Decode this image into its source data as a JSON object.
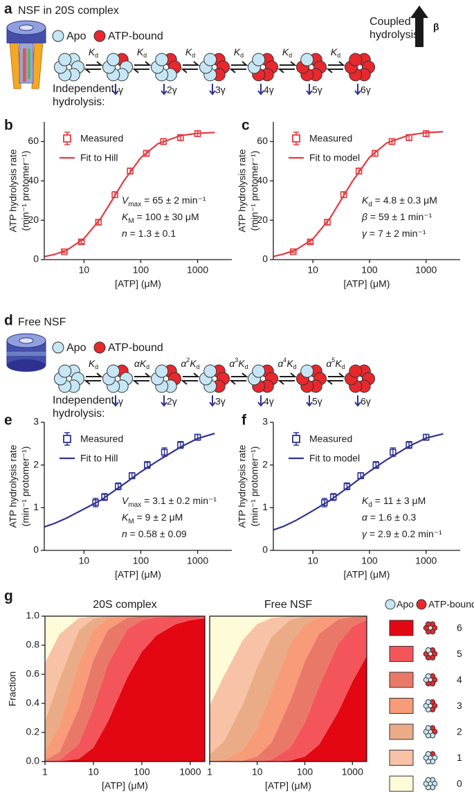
{
  "panel_a": {
    "letter": "a",
    "title": "NSF in 20S complex",
    "title_color": "#e30613",
    "apo": "Apo",
    "bound": "ATP-bound",
    "steps": [
      {
        "k": "K",
        "sub": "d"
      },
      {
        "k": "K",
        "sub": "d"
      },
      {
        "k": "K",
        "sub": "d"
      },
      {
        "k": "K",
        "sub": "d"
      },
      {
        "k": "K",
        "sub": "d"
      },
      {
        "k": "K",
        "sub": "d"
      }
    ],
    "hydrolysis": [
      "γ",
      "2γ",
      "3γ",
      "4γ",
      "5γ",
      "6γ"
    ],
    "independent": [
      "Independent",
      "hydrolysis:"
    ],
    "coupled": [
      "Coupled",
      "hydrolysis:"
    ],
    "beta": "β"
  },
  "panel_d": {
    "letter": "d",
    "title": "Free NSF",
    "title_color": "#2e3192",
    "apo": "Apo",
    "bound": "ATP-bound",
    "steps": [
      {
        "k": "K",
        "sub": "d"
      },
      {
        "coef": "α",
        "k": "K",
        "sub": "d"
      },
      {
        "coef": "α",
        "exp": "2",
        "k": "K",
        "sub": "d"
      },
      {
        "coef": "α",
        "exp": "3",
        "k": "K",
        "sub": "d"
      },
      {
        "coef": "α",
        "exp": "4",
        "k": "K",
        "sub": "d"
      },
      {
        "coef": "α",
        "exp": "5",
        "k": "K",
        "sub": "d"
      }
    ],
    "hydrolysis": [
      "γ",
      "2γ",
      "3γ",
      "4γ",
      "5γ",
      "6γ"
    ],
    "independent": [
      "Independent",
      "hydrolysis:"
    ]
  },
  "chart_data": [
    {
      "type": "scatter",
      "letter": "b",
      "xlabel": "[ATP] (μM)",
      "ylabel": [
        "ATP hydrolysis rate",
        "(min⁻¹ protomer⁻¹)"
      ],
      "xscale": "log",
      "xlim": [
        2,
        4000
      ],
      "xticks": [
        10,
        100,
        1000
      ],
      "ylim": [
        0,
        70
      ],
      "yticks": [
        0,
        20,
        40,
        60
      ],
      "series": [
        {
          "name": "Measured",
          "color": "#e53a3f",
          "style": "marker",
          "x": [
            4.5,
            9,
            18,
            35,
            65,
            125,
            250,
            500,
            1000
          ],
          "values": [
            4,
            9,
            19,
            33,
            45,
            54,
            60,
            62,
            64
          ],
          "errors": [
            0.5,
            0.8,
            1.2,
            1.5,
            1.5,
            1.5,
            1.5,
            1.5,
            1.5
          ]
        },
        {
          "name": "Fit to Hill",
          "color": "#e53a3f",
          "style": "line",
          "x": [
            2,
            3,
            5,
            10,
            20,
            35,
            50,
            100,
            200,
            500,
            1000,
            2000
          ],
          "values": [
            1.5,
            2.6,
            4.8,
            10.7,
            21.2,
            32.5,
            39.9,
            51.8,
            58.9,
            63.0,
            64.2,
            64.6
          ]
        }
      ],
      "stats": [
        {
          "sym": "V",
          "sub": "max",
          "text": " = 65 ± 2 min⁻¹"
        },
        {
          "sym": "K",
          "sub": "M",
          "text": " = 100 ± 30 μM"
        },
        {
          "sym": "n",
          "text": " = 1.3 ± 0.1"
        }
      ]
    },
    {
      "type": "scatter",
      "letter": "c",
      "xlabel": "[ATP] (μM)",
      "ylabel": [
        "ATP hydrolysis rate",
        "(min⁻¹ protomer⁻¹)"
      ],
      "xscale": "log",
      "xlim": [
        2,
        4000
      ],
      "xticks": [
        10,
        100,
        1000
      ],
      "ylim": [
        0,
        70
      ],
      "yticks": [
        0,
        20,
        40,
        60
      ],
      "series": [
        {
          "name": "Measured",
          "color": "#e53a3f",
          "style": "marker",
          "x": [
            4.5,
            9,
            18,
            35,
            65,
            125,
            250,
            500,
            1000
          ],
          "values": [
            4,
            9,
            19,
            33,
            45,
            54,
            60,
            62,
            64
          ],
          "errors": [
            0.5,
            0.8,
            1.2,
            1.5,
            1.5,
            1.5,
            1.5,
            1.5,
            1.5
          ]
        },
        {
          "name": "Fit to model",
          "color": "#e53a3f",
          "style": "line",
          "x": [
            2,
            3,
            5,
            10,
            20,
            35,
            50,
            100,
            200,
            500,
            1000,
            2000
          ],
          "values": [
            1.6,
            2.8,
            4.9,
            10.5,
            21,
            32.5,
            39.8,
            52,
            59.2,
            63.3,
            64.5,
            65
          ]
        }
      ],
      "stats": [
        {
          "sym": "K",
          "sub": "d",
          "text": " = 4.8 ± 0.3 μM"
        },
        {
          "sym": "β",
          "text": " = 59 ± 1 min⁻¹"
        },
        {
          "sym": "γ",
          "text": " = 7 ± 2 min⁻¹"
        }
      ]
    },
    {
      "type": "scatter",
      "letter": "e",
      "xlabel": "[ATP] (μM)",
      "ylabel": [
        "ATP hydrolysis rate",
        "(min⁻¹ protomer⁻¹)"
      ],
      "xscale": "log",
      "xlim": [
        2,
        4000
      ],
      "xticks": [
        10,
        100,
        1000
      ],
      "ylim": [
        0,
        3
      ],
      "yticks": [
        0,
        1,
        2,
        3
      ],
      "series": [
        {
          "name": "Measured",
          "color": "#2e3192",
          "style": "marker",
          "x": [
            16,
            23,
            40,
            70,
            130,
            260,
            500,
            1000
          ],
          "values": [
            1.12,
            1.25,
            1.5,
            1.75,
            2.0,
            2.3,
            2.47,
            2.65
          ],
          "errors": [
            0.1,
            0.08,
            0.08,
            0.07,
            0.08,
            0.1,
            0.08,
            0.07
          ]
        },
        {
          "name": "Fit to Hill",
          "color": "#2e3192",
          "style": "line",
          "x": [
            2,
            3,
            5,
            10,
            20,
            50,
            100,
            200,
            500,
            1000,
            2000
          ],
          "values": [
            0.55,
            0.63,
            0.76,
            0.97,
            1.18,
            1.55,
            1.84,
            2.1,
            2.42,
            2.62,
            2.74
          ]
        }
      ],
      "stats": [
        {
          "sym": "V",
          "sub": "max",
          "text": " = 3.1 ± 0.2 min⁻¹"
        },
        {
          "sym": "K",
          "sub": "M",
          "text": " = 9 ± 2 μM"
        },
        {
          "sym": "n",
          "text": " = 0.58 ± 0.09"
        }
      ]
    },
    {
      "type": "scatter",
      "letter": "f",
      "xlabel": "[ATP] (μM)",
      "ylabel": [
        "ATP hydrolysis rate",
        "(min⁻¹ protomer⁻¹)"
      ],
      "xscale": "log",
      "xlim": [
        2,
        4000
      ],
      "xticks": [
        10,
        100,
        1000
      ],
      "ylim": [
        0,
        3
      ],
      "yticks": [
        0,
        1,
        2,
        3
      ],
      "series": [
        {
          "name": "Measured",
          "color": "#2e3192",
          "style": "marker",
          "x": [
            16,
            23,
            40,
            70,
            130,
            260,
            500,
            1000
          ],
          "values": [
            1.12,
            1.25,
            1.5,
            1.75,
            2.0,
            2.3,
            2.47,
            2.65
          ],
          "errors": [
            0.1,
            0.08,
            0.08,
            0.07,
            0.08,
            0.1,
            0.08,
            0.07
          ]
        },
        {
          "name": "Fit to model",
          "color": "#2e3192",
          "style": "line",
          "x": [
            2,
            3,
            5,
            10,
            20,
            50,
            100,
            200,
            500,
            1000,
            2000
          ],
          "values": [
            0.48,
            0.56,
            0.7,
            0.93,
            1.17,
            1.55,
            1.85,
            2.12,
            2.44,
            2.63,
            2.73
          ]
        }
      ],
      "stats": [
        {
          "sym": "K",
          "sub": "d",
          "text": " = 11 ± 3 μM"
        },
        {
          "sym": "α",
          "text": " = 1.6 ± 0.3"
        },
        {
          "sym": "γ",
          "text": " = 2.9 ± 0.2 min⁻¹"
        }
      ]
    },
    {
      "type": "area",
      "letter": "g",
      "title": "20S complex",
      "title_color": "#e30613",
      "xlabel": "[ATP] (μM)",
      "ylabel": "Fraction",
      "legend_header": [
        "Apo",
        "ATP-bound"
      ],
      "frame": true,
      "xscale": "log",
      "xlim": [
        1,
        2000
      ],
      "xticks": [
        1,
        10,
        100,
        1000
      ],
      "ylim": [
        0,
        1
      ],
      "yticks": [
        {
          "value": 0,
          "label": "0.0"
        },
        0.2,
        0.4,
        0.6,
        0.8,
        {
          "value": 1,
          "label": "1.0"
        }
      ],
      "x": [
        1,
        2,
        5,
        10,
        20,
        50,
        100,
        200,
        500,
        1000,
        2000
      ],
      "series": [
        {
          "name": "6",
          "color": "#e30613",
          "values": [
            0,
            0.001,
            0.018,
            0.095,
            0.275,
            0.577,
            0.755,
            0.867,
            0.944,
            0.972,
            0.986
          ]
        },
        {
          "name": "5",
          "color": "#f4555a",
          "values": [
            0.001,
            0.009,
            0.102,
            0.274,
            0.395,
            0.332,
            0.217,
            0.125,
            0.054,
            0.028,
            0.014
          ]
        },
        {
          "name": "4",
          "color": "#ea7868",
          "values": [
            0.009,
            0.056,
            0.244,
            0.329,
            0.237,
            0.08,
            0.026,
            0.007,
            0.001,
            0,
            0
          ]
        },
        {
          "name": "3",
          "color": "#f89b78",
          "values": [
            0.058,
            0.179,
            0.312,
            0.21,
            0.076,
            0.01,
            0.002,
            0,
            0,
            0,
            0
          ]
        },
        {
          "name": "2",
          "color": "#eaac86",
          "values": [
            0.209,
            0.322,
            0.225,
            0.076,
            0.014,
            0.001,
            0,
            0,
            0,
            0,
            0
          ]
        },
        {
          "name": "1",
          "color": "#f8c2a6",
          "values": [
            0.402,
            0.309,
            0.086,
            0.015,
            0.001,
            0,
            0,
            0,
            0,
            0,
            0
          ]
        },
        {
          "name": "0",
          "color": "#fefbd8",
          "values": [
            0.321,
            0.124,
            0.014,
            0.001,
            0,
            0,
            0,
            0,
            0,
            0,
            0
          ]
        }
      ]
    },
    {
      "type": "area",
      "title": "Free NSF",
      "title_color": "#2e3192",
      "xlabel": "[ATP] (μM)",
      "frame": true,
      "xscale": "log",
      "xlim": [
        1,
        2000
      ],
      "xticks": [
        1,
        10,
        100,
        1000
      ],
      "ylim": [
        0,
        1
      ],
      "x": [
        1,
        2,
        5,
        10,
        20,
        50,
        100,
        200,
        500,
        1000,
        2000
      ],
      "series": [
        {
          "color": "#e30613",
          "values": [
            0,
            0,
            0,
            0,
            0,
            0.007,
            0.034,
            0.116,
            0.339,
            0.548,
            0.726
          ]
        },
        {
          "color": "#f4555a",
          "values": [
            0,
            0,
            0,
            0.002,
            0.013,
            0.09,
            0.234,
            0.402,
            0.47,
            0.379,
            0.251
          ]
        },
        {
          "color": "#ea7868",
          "values": [
            0,
            0,
            0.006,
            0.033,
            0.118,
            0.325,
            0.422,
            0.362,
            0.169,
            0.068,
            0.023
          ]
        },
        {
          "color": "#f89b78",
          "values": [
            0.002,
            0.012,
            0.074,
            0.198,
            0.353,
            0.39,
            0.253,
            0.109,
            0.02,
            0.004,
            0.001
          ]
        },
        {
          "color": "#eaac86",
          "values": [
            0.048,
            0.128,
            0.314,
            0.418,
            0.373,
            0.165,
            0.054,
            0.012,
            0.001,
            0,
            0
          ]
        },
        {
          "color": "#f8c2a6",
          "values": [
            0.335,
            0.449,
            0.443,
            0.295,
            0.131,
            0.023,
            0.004,
            0,
            0,
            0,
            0
          ]
        },
        {
          "color": "#fefbd8",
          "values": [
            0.615,
            0.411,
            0.162,
            0.054,
            0.012,
            0.001,
            0,
            0,
            0,
            0,
            0
          ]
        }
      ]
    }
  ]
}
